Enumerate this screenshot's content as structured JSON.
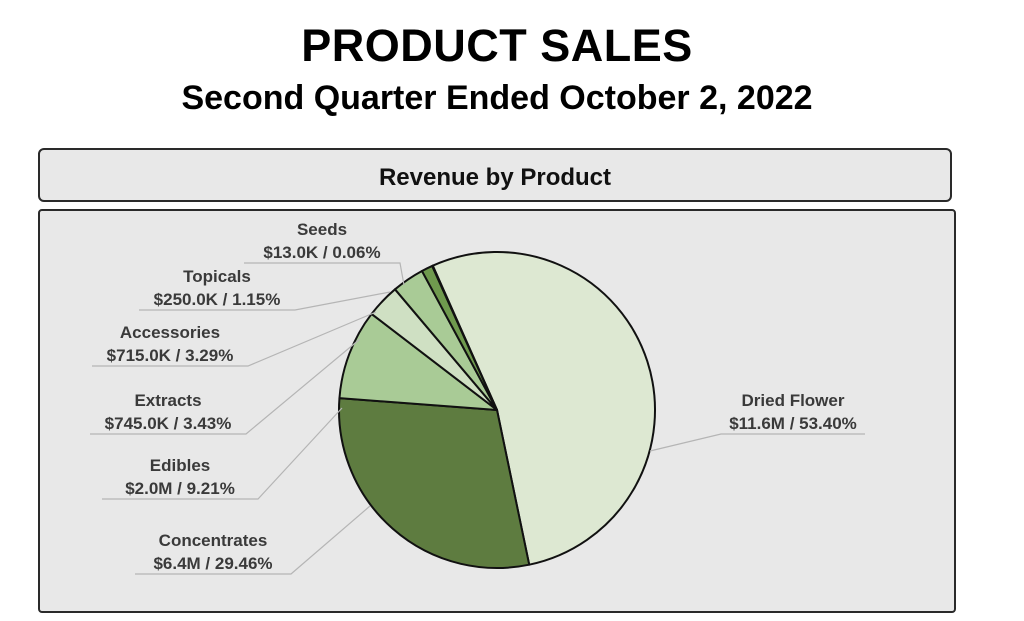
{
  "title": "PRODUCT SALES",
  "subtitle": "Second Quarter Ended October 2, 2022",
  "chart_data": {
    "type": "pie",
    "title": "Revenue by Product",
    "slices": [
      {
        "label": "Dried Flower",
        "value_text": "$11.6M / 53.40%",
        "value": 11.6,
        "percent": 53.4,
        "color": "#dde8d2"
      },
      {
        "label": "Concentrates",
        "value_text": "$6.4M / 29.46%",
        "value": 6.4,
        "percent": 29.46,
        "color": "#5e7c40"
      },
      {
        "label": "Edibles",
        "value_text": "$2.0M / 9.21%",
        "value": 2.0,
        "percent": 9.21,
        "color": "#a9cb96"
      },
      {
        "label": "Extracts",
        "value_text": "$745.0K / 3.43%",
        "value": 0.745,
        "percent": 3.43,
        "color": "#cfe0c3"
      },
      {
        "label": "Accessories",
        "value_text": "$715.0K / 3.29%",
        "value": 0.715,
        "percent": 3.29,
        "color": "#a9cb96"
      },
      {
        "label": "Topicals",
        "value_text": "$250.0K / 1.15%",
        "value": 0.25,
        "percent": 1.15,
        "color": "#6f9a4e"
      },
      {
        "label": "Seeds",
        "value_text": "$13.0K / 0.06%",
        "value": 0.013,
        "percent": 0.06,
        "color": "#d8e8cc"
      }
    ]
  }
}
